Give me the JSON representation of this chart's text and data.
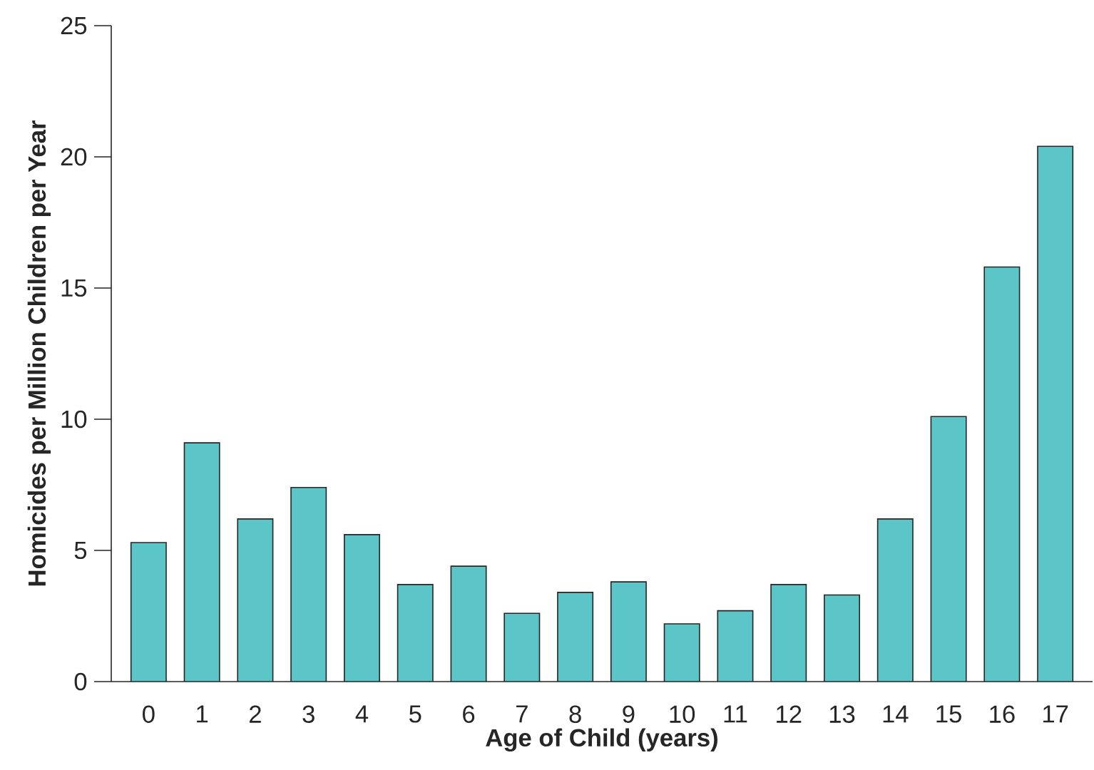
{
  "chart_data": {
    "type": "bar",
    "xlabel": "Age of Child (years)",
    "ylabel": "Homicides per Million Children per Year",
    "categories": [
      "0",
      "1",
      "2",
      "3",
      "4",
      "5",
      "6",
      "7",
      "8",
      "9",
      "10",
      "11",
      "12",
      "13",
      "14",
      "15",
      "16",
      "17"
    ],
    "values": [
      5.3,
      9.1,
      6.2,
      7.4,
      5.6,
      3.7,
      4.4,
      2.6,
      3.4,
      3.8,
      2.2,
      2.7,
      3.7,
      3.3,
      6.2,
      10.1,
      15.8,
      20.4
    ],
    "color": "#5bc5c7",
    "ylim": [
      0,
      25
    ],
    "yticks": [
      0,
      5,
      10,
      15,
      20,
      25
    ],
    "grid": false
  }
}
